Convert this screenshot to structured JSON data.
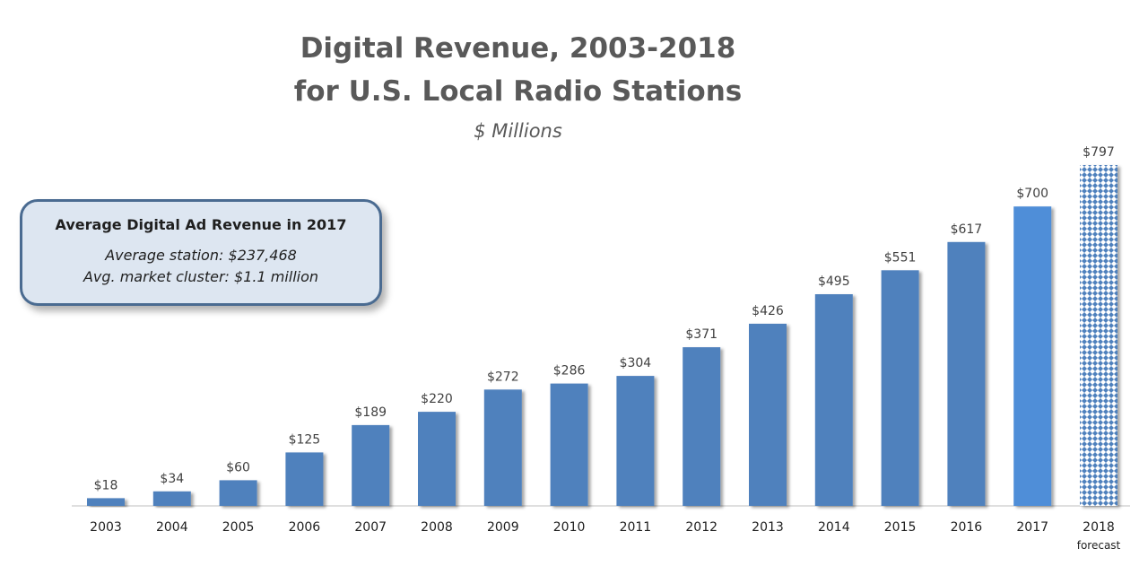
{
  "chart_data": {
    "type": "bar",
    "title": "Digital Revenue, 2003-2018",
    "title_line2": "for U.S. Local Radio Stations",
    "subtitle": "$ Millions",
    "categories": [
      "2003",
      "2004",
      "2005",
      "2006",
      "2007",
      "2008",
      "2009",
      "2010",
      "2011",
      "2012",
      "2013",
      "2014",
      "2015",
      "2016",
      "2017",
      "2018"
    ],
    "category_sublabels": [
      "",
      "",
      "",
      "",
      "",
      "",
      "",
      "",
      "",
      "",
      "",
      "",
      "",
      "",
      "",
      "forecast"
    ],
    "values": [
      18,
      34,
      60,
      125,
      189,
      220,
      272,
      286,
      304,
      371,
      426,
      495,
      551,
      617,
      700,
      797
    ],
    "value_labels": [
      "$18",
      "$34",
      "$60",
      "$125",
      "$189",
      "$220",
      "$272",
      "$286",
      "$304",
      "$371",
      "$426",
      "$495",
      "$551",
      "$617",
      "$700",
      "$797"
    ],
    "ylim": [
      0,
      860
    ],
    "grid": false,
    "legend": "none",
    "colors": {
      "bar": "#4f81bd",
      "highlight_2017": "#4f8ed8",
      "forecast_pattern": "#4f81bd"
    }
  },
  "callout": {
    "title": "Average Digital Ad Revenue in 2017",
    "line1": "Average station:  $237,468",
    "line2": "Avg. market cluster: $1.1 million"
  }
}
